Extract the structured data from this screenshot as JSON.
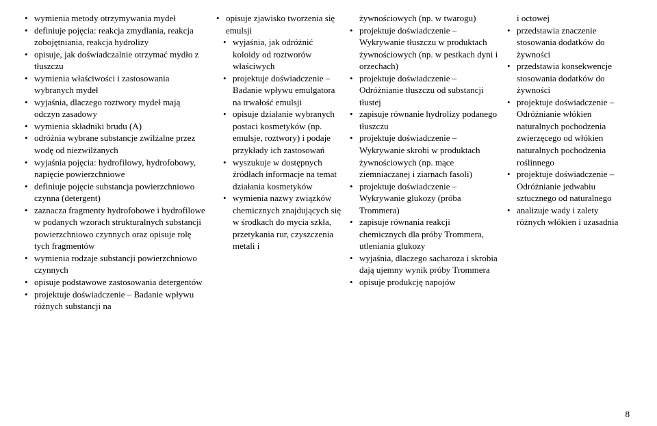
{
  "pageNumber": "8",
  "col1": {
    "items": [
      "wymienia metody otrzymywania mydeł",
      "definiuje pojęcia: reakcja zmydlania, reakcja zobojętniania, reakcja hydrolizy",
      "opisuje, jak doświadczalnie otrzymać mydło z tłuszczu",
      "wymienia właściwości i zastosowania wybranych mydeł",
      "wyjaśnia, dlaczego roztwory mydeł mają odczyn zasadowy",
      "wymienia składniki brudu (A)",
      "odróżnia wybrane substancje zwilżalne przez wodę od niezwilżanych",
      "wyjaśnia pojęcia: hydrofilowy, hydrofobowy, napięcie powierzchniowe",
      "definiuje pojęcie substancja powierzchniowo czynna (detergent)",
      "zaznacza fragmenty hydrofobowe i hydrofilowe w podanych wzorach strukturalnych substancji powierzchniowo czynnych oraz opisuje rolę tych fragmentów",
      "wymienia rodzaje substancji powierzchniowo czynnych",
      "opisuje podstawowe zastosowania detergentów",
      "projektuje doświadczenie – Badanie wpływu różnych substancji na"
    ]
  },
  "col2": {
    "lead": "opisuje zjawisko tworzenia się emulsji",
    "subitems": [
      "wyjaśnia, jak odróżnić koloidy od roztworów właściwych",
      "projektuje doświadczenie – Badanie wpływu emulgatora na trwałość emulsji",
      "opisuje działanie wybranych postaci kosmetyków (np. emulsje, roztwory) i podaje przykłady ich zastosowań",
      "wyszukuje w dostępnych źródłach informacje na temat działania kosmetyków",
      "wymienia nazwy związków chemicznych znajdujących się w środkach do mycia szkła, przetykania rur, czyszczenia metali i"
    ]
  },
  "col3": {
    "lead": "żywnościowych (np. w twarogu)",
    "items": [
      "projektuje doświadczenie – Wykrywanie tłuszczu w produktach żywnościowych (np. w pestkach dyni i orzechach)",
      "projektuje doświadczenie – Odróżnianie tłuszczu od substancji tłustej",
      "zapisuje równanie hydrolizy podanego tłuszczu",
      "projektuje doświadczenie – Wykrywanie skrobi w produktach żywnościowych (np. mące ziemniaczanej i ziarnach fasoli)",
      "projektuje doświadczenie – Wykrywanie glukozy (próba Trommera)",
      "zapisuje równania reakcji chemicznych dla próby Trommera, utleniania glukozy",
      "wyjaśnia, dlaczego sacharoza i skrobia dają ujemny wynik próby Trommera",
      "opisuje produkcję napojów"
    ]
  },
  "col4": {
    "lead": "i octowej",
    "items": [
      "przedstawia znaczenie stosowania dodatków do żywności",
      "przedstawia konsekwencje stosowania dodatków do żywności",
      "projektuje doświadczenie – Odróżnianie włókien naturalnych pochodzenia zwierzęcego od włókien naturalnych pochodzenia roślinnego",
      "projektuje doświadczenie – Odróżnianie jedwabiu sztucznego od naturalnego",
      "analizuje wady i zalety różnych włókien i uzasadnia"
    ]
  }
}
